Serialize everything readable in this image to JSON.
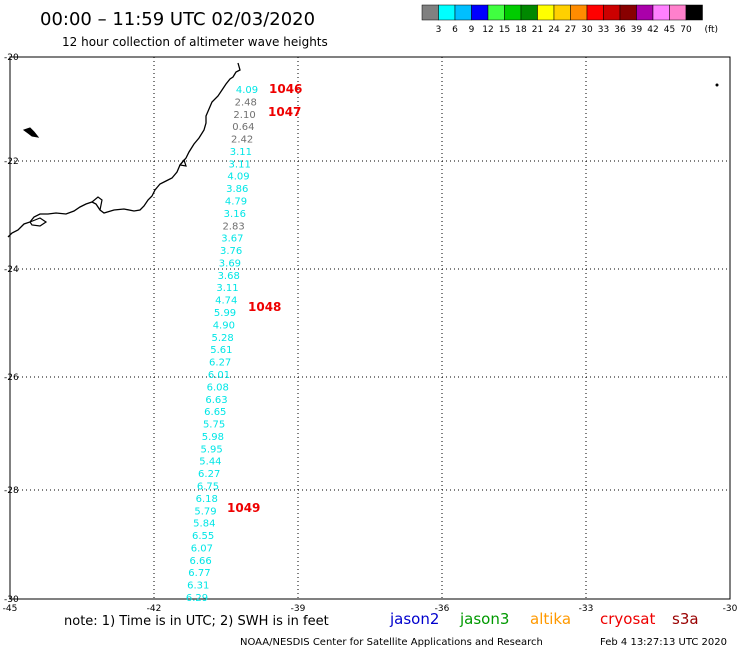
{
  "header": {
    "title": "00:00 – 11:59 UTC 02/03/2020",
    "subtitle": "12 hour collection of altimeter wave heights"
  },
  "legend": {
    "labels": [
      "3",
      "6",
      "9",
      "12",
      "15",
      "18",
      "21",
      "24",
      "27",
      "30",
      "33",
      "36",
      "39",
      "42",
      "45",
      "70"
    ],
    "unit": "(ft)",
    "colors": [
      "#808080",
      "#00ffff",
      "#00bfff",
      "#0000ff",
      "#40ff40",
      "#00cc00",
      "#008800",
      "#ffff00",
      "#ffd000",
      "#ff8c00",
      "#ff0000",
      "#cc0000",
      "#880000",
      "#aa00aa",
      "#ff80ff",
      "#ff80cc",
      "#000000"
    ]
  },
  "axes": {
    "lon_ticks": [
      "-45",
      "-42",
      "-39",
      "-36",
      "-33",
      "-30"
    ],
    "lat_ticks": [
      "-20",
      "-22",
      "-24",
      "-26",
      "-28",
      "-30"
    ]
  },
  "track": {
    "values": [
      "4.09",
      "2.48",
      "2.10",
      "0.64",
      "2.42",
      "3.11",
      "3.11",
      "4.09",
      "3.86",
      "4.79",
      "3.16",
      "2.83",
      "3.67",
      "3.76",
      "3.69",
      "3.68",
      "3.11",
      "4.74",
      "5.99",
      "4.90",
      "5.28",
      "5.61",
      "6.27",
      "6.01",
      "6.08",
      "6.63",
      "6.65",
      "5.75",
      "5.98",
      "5.95",
      "5.44",
      "6.27",
      "6.75",
      "6.18",
      "5.79",
      "5.84",
      "6.55",
      "6.07",
      "6.66",
      "6.77",
      "6.31",
      "6.29"
    ],
    "colors": [
      "cyan",
      "gray",
      "gray",
      "gray",
      "gray",
      "cyan",
      "cyan",
      "cyan",
      "cyan",
      "cyan",
      "cyan",
      "gray",
      "cyan",
      "cyan",
      "cyan",
      "cyan",
      "cyan",
      "cyan",
      "cyan",
      "cyan",
      "cyan",
      "cyan",
      "cyan",
      "cyan",
      "cyan",
      "cyan",
      "cyan",
      "cyan",
      "cyan",
      "cyan",
      "cyan",
      "cyan",
      "cyan",
      "cyan",
      "cyan",
      "cyan",
      "cyan",
      "cyan",
      "cyan",
      "cyan",
      "cyan",
      "cyan"
    ],
    "time_labels": [
      "1046",
      "1047",
      "1048",
      "1049"
    ]
  },
  "footer": {
    "note": "note: 1) Time is in UTC; 2) SWH is in feet",
    "satellites": [
      {
        "name": "jason2",
        "color": "#0000cc"
      },
      {
        "name": "jason3",
        "color": "#009900"
      },
      {
        "name": "altika",
        "color": "#ff9900"
      },
      {
        "name": "cryosat",
        "color": "#ee0000"
      },
      {
        "name": "s3a",
        "color": "#990000"
      }
    ],
    "credit": "NOAA/NESDIS Center for Satellite Applications and Research",
    "timestamp": "Feb  4 13:27:13 UTC 2020"
  }
}
